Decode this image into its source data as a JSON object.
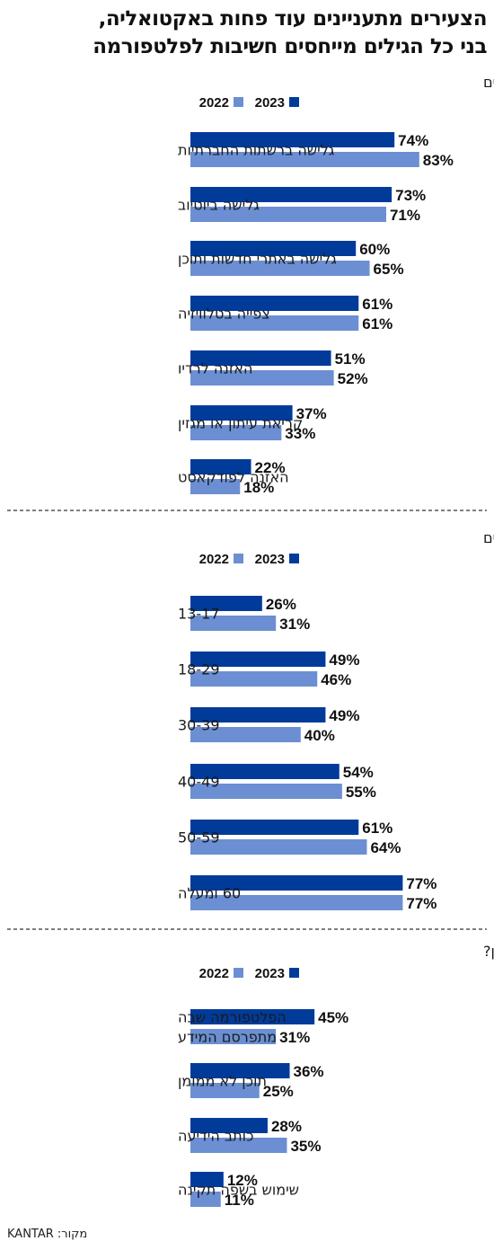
{
  "title_lines": [
    "הצעירים מתעניינים עוד פחות באקטואליה,",
    "בני כל הגילים מייחסים חשיבות לפלטפורמה"
  ],
  "legend": {
    "label_2023": "2023",
    "label_2022": "2022"
  },
  "colors": {
    "series_2023": "#003b9a",
    "series_2022": "#6b8fd2",
    "divider": "#555555"
  },
  "source": "מקור: KANTAR",
  "chart_data": [
    {
      "type": "bar",
      "orientation": "horizontal",
      "title": "הרגלי צריכת התקשורת של הישראלים, באחוזים",
      "categories": [
        "גלישה ברשתות החברתיות",
        "גלישה ביוטיוב",
        "גלישה באתרי חדשות ותוכן",
        "צפייה בטלוויזיה",
        "האזנה לרדיו",
        "קריאת עיתון או מגזין",
        "האזנה לפודקאסט"
      ],
      "series": [
        {
          "name": "2023",
          "values": [
            74,
            73,
            60,
            61,
            51,
            37,
            22
          ]
        },
        {
          "name": "2022",
          "values": [
            83,
            71,
            65,
            61,
            52,
            33,
            18
          ]
        }
      ],
      "unit": "%",
      "xlim": [
        0,
        100
      ]
    },
    {
      "type": "bar",
      "orientation": "horizontal",
      "title": "שיעור המתעניינים בחדשות ואקטואליה בכל קבוצת גיל, באחוזים",
      "categories": [
        "13-17",
        "18-29",
        "30-39",
        "40-49",
        "50-59",
        "60 ומעלה"
      ],
      "series": [
        {
          "name": "2023",
          "values": [
            26,
            49,
            49,
            54,
            61,
            77
          ]
        },
        {
          "name": "2022",
          "values": [
            31,
            46,
            40,
            55,
            64,
            77
          ]
        }
      ],
      "unit": "%",
      "xlim": [
        0,
        100
      ]
    },
    {
      "type": "bar",
      "orientation": "horizontal",
      "title": "מה הופך תוכן לאמין?",
      "categories": [
        [
          "הפלטפורמה שבה",
          "מתפרסם המידע"
        ],
        "תוכן לא ממומן",
        "כותב הידיעה",
        "שימוש בשפה תקינה"
      ],
      "series": [
        {
          "name": "2023",
          "values": [
            45,
            36,
            28,
            12
          ]
        },
        {
          "name": "2022",
          "values": [
            31,
            25,
            35,
            11
          ]
        }
      ],
      "unit": "%",
      "xlim": [
        0,
        100
      ]
    }
  ]
}
